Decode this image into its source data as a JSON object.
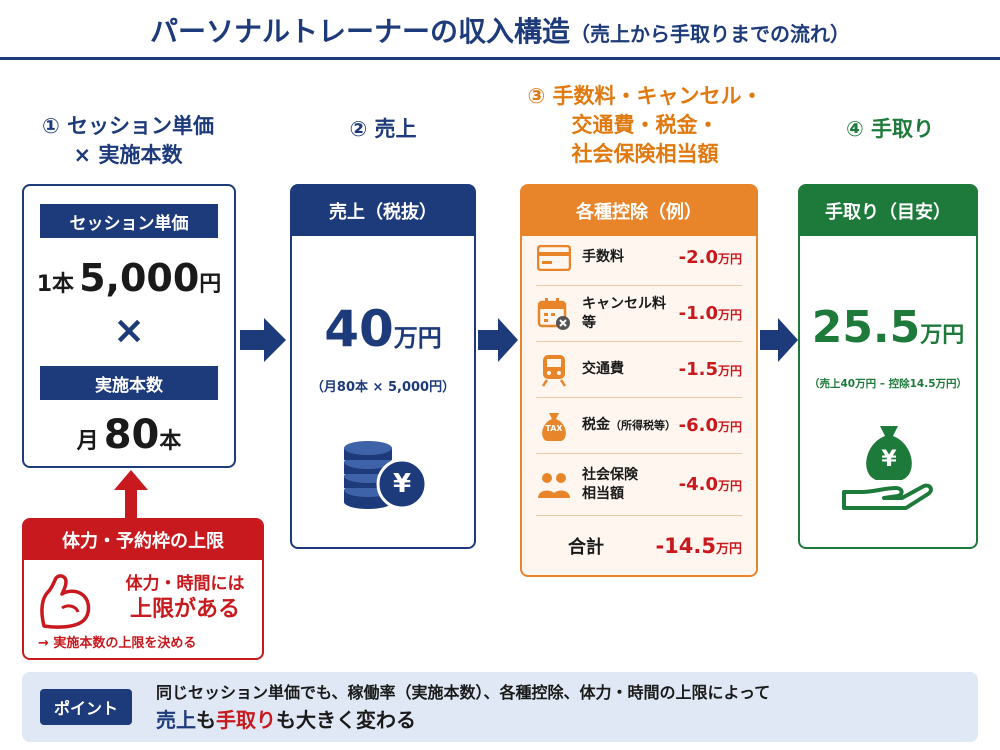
{
  "title": {
    "main": "パーソナルトレーナーの収入構造",
    "sub": "（売上から手取りまでの流れ）"
  },
  "steps": {
    "step1": {
      "line1": "① セッション単価",
      "line2": "× 実施本数"
    },
    "step2": {
      "line1": "② 売上"
    },
    "step3": {
      "line1": "③ 手数料・キャンセル・",
      "line2": "交通費・税金・",
      "line3": "社会保険相当額"
    },
    "step4": {
      "line1": "④ 手取り"
    }
  },
  "card1": {
    "unit_price_label": "セッション単価",
    "unit_price_prefix": "1本",
    "unit_price_value": "5,000",
    "unit_price_suffix": "円",
    "times_symbol": "×",
    "count_label": "実施本数",
    "count_prefix": "月",
    "count_value": "80",
    "count_suffix": "本"
  },
  "limit_card": {
    "header": "体力・予約枠の上限",
    "line1": "体力・時間には",
    "line2": "上限がある",
    "note": "→ 実施本数の上限を決める",
    "icon": "flexed-arm-icon"
  },
  "sales_card": {
    "header": "売上（税抜）",
    "value": "40",
    "unit": "万円",
    "formula": "（月80本 × 5,000円）",
    "icon": "coin-stack-yen-icon",
    "coin_symbol": "¥"
  },
  "deductions_card": {
    "header": "各種控除（例）",
    "items": [
      {
        "label": "手数料",
        "amount": "-2.0",
        "unit": "万円",
        "icon": "credit-card-icon"
      },
      {
        "label": "キャンセル料等",
        "amount": "-1.0",
        "unit": "万円",
        "icon": "calendar-cancel-icon"
      },
      {
        "label": "交通費",
        "amount": "-1.5",
        "unit": "万円",
        "icon": "train-icon"
      },
      {
        "label": "税金",
        "label_small": "（所得税等）",
        "amount": "-6.0",
        "unit": "万円",
        "icon": "tax-bag-icon",
        "icon_text": "TAX"
      },
      {
        "label": "社会保険",
        "label2": "相当額",
        "amount": "-4.0",
        "unit": "万円",
        "icon": "people-icon"
      }
    ],
    "total_label": "合計",
    "total_amount": "-14.5",
    "total_unit": "万円"
  },
  "net_card": {
    "header": "手取り（目安）",
    "value": "25.5",
    "unit": "万円",
    "formula": "（売上40万円 – 控除14.5万円）",
    "icon": "money-bag-hand-icon",
    "bag_symbol": "¥"
  },
  "point": {
    "badge": "ポイント",
    "line1": "同じセッション単価でも、稼働率（実施本数）、各種控除、体力・時間の上限によって",
    "line2_a": "売上",
    "line2_b": "も",
    "line2_c": "手取り",
    "line2_d": "も大きく変わる"
  },
  "colors": {
    "navy": "#1d3a7a",
    "orange": "#e8852a",
    "green": "#1e7a3a",
    "red": "#c8191e"
  }
}
